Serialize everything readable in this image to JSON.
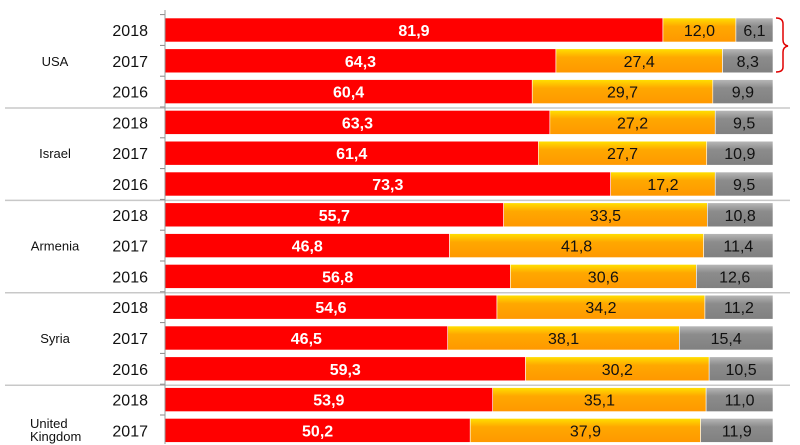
{
  "chart_data": {
    "type": "bar",
    "orientation": "horizontal",
    "stacked": true,
    "title": "",
    "xlabel": "",
    "ylabel": "",
    "xlim": [
      0,
      100
    ],
    "colors": {
      "series1": "#ff0000",
      "series2": "#ffa500",
      "series3": "#8c8c8c"
    },
    "groups": [
      {
        "country": "USA",
        "rows": [
          {
            "year": "2018",
            "values": [
              "81,9",
              "12,0",
              "6,1"
            ]
          },
          {
            "year": "2017",
            "values": [
              "64,3",
              "27,4",
              "8,3"
            ]
          },
          {
            "year": "2016",
            "values": [
              "60,4",
              "29,7",
              "9,9"
            ]
          }
        ]
      },
      {
        "country": "Israel",
        "rows": [
          {
            "year": "2018",
            "values": [
              "63,3",
              "27,2",
              "9,5"
            ]
          },
          {
            "year": "2017",
            "values": [
              "61,4",
              "27,7",
              "10,9"
            ]
          },
          {
            "year": "2016",
            "values": [
              "73,3",
              "17,2",
              "9,5"
            ]
          }
        ]
      },
      {
        "country": "Armenia",
        "rows": [
          {
            "year": "2018",
            "values": [
              "55,7",
              "33,5",
              "10,8"
            ]
          },
          {
            "year": "2017",
            "values": [
              "46,8",
              "41,8",
              "11,4"
            ]
          },
          {
            "year": "2016",
            "values": [
              "56,8",
              "30,6",
              "12,6"
            ]
          }
        ]
      },
      {
        "country": "Syria",
        "rows": [
          {
            "year": "2018",
            "values": [
              "54,6",
              "34,2",
              "11,2"
            ]
          },
          {
            "year": "2017",
            "values": [
              "46,5",
              "38,1",
              "15,4"
            ]
          },
          {
            "year": "2016",
            "values": [
              "59,3",
              "30,2",
              "10,5"
            ]
          }
        ]
      },
      {
        "country": "United Kingdom",
        "rows": [
          {
            "year": "2018",
            "values": [
              "53,9",
              "35,1",
              "11,0"
            ]
          },
          {
            "year": "2017",
            "values": [
              "50,2",
              "37,9",
              "11,9"
            ]
          }
        ]
      }
    ]
  }
}
